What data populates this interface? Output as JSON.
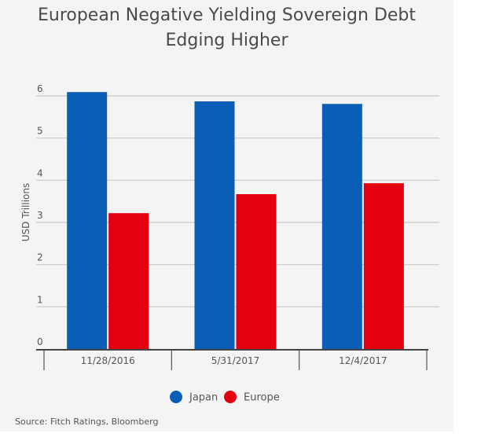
{
  "chart_data": {
    "type": "bar",
    "title": "European Negative Yielding Sovereign Debt Edging Higher",
    "title_lines": [
      "European Negative Yielding Sovereign Debt",
      "Edging Higher"
    ],
    "xlabel": "",
    "ylabel": "USD Trillions",
    "ylim": [
      0,
      6
    ],
    "yticks": [
      "0",
      "1",
      "2",
      "3",
      "4",
      "5",
      "6"
    ],
    "categories": [
      "11/28/2016",
      "5/31/2017",
      "12/4/2017"
    ],
    "series": [
      {
        "name": "Japan",
        "color": "#0a5eb6",
        "values": [
          6.09,
          5.87,
          5.81
        ]
      },
      {
        "name": "Europe",
        "color": "#e3000f",
        "values": [
          3.22,
          3.67,
          3.93
        ]
      }
    ],
    "grid": true,
    "legend_position": "bottom-center",
    "source": "Source: Fitch Ratings, Bloomberg"
  }
}
